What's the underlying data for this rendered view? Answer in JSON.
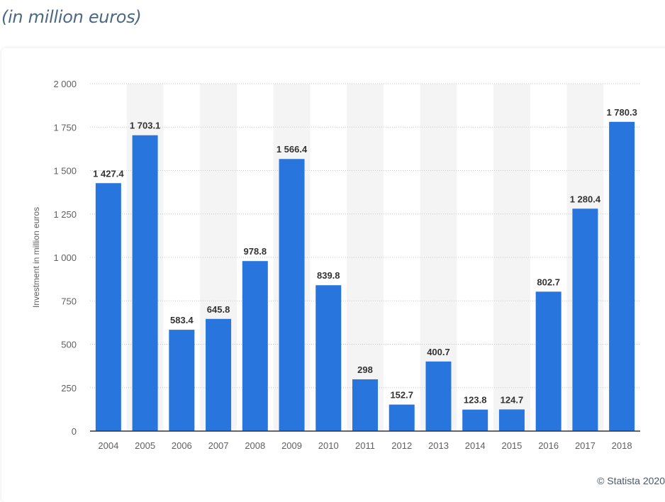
{
  "heading": "(in million euros)",
  "credit": "© Statista 2020",
  "side_tools": [
    "tool-1",
    "tool-2",
    "tool-3",
    "tool-4",
    "tool-5",
    "tool-6"
  ],
  "colors": {
    "bar": "#2876dd",
    "band": "#f4f4f4",
    "grid": "#c8c8c8",
    "axis": "#333333",
    "tick_text": "#606060",
    "label_text": "#333333"
  },
  "chart_data": {
    "type": "bar",
    "title": "",
    "xlabel": "",
    "ylabel": "Investment in million euros",
    "ylim": [
      0,
      2000
    ],
    "yticks": [
      0,
      250,
      500,
      750,
      1000,
      1250,
      1500,
      1750,
      2000
    ],
    "ytick_labels": [
      "0",
      "250",
      "500",
      "750",
      "1 000",
      "1 250",
      "1 500",
      "1 750",
      "2 000"
    ],
    "grid": true,
    "categories": [
      "2004",
      "2005",
      "2006",
      "2007",
      "2008",
      "2009",
      "2010",
      "2011",
      "2012",
      "2013",
      "2014",
      "2015",
      "2016",
      "2017",
      "2018"
    ],
    "values": [
      1427.4,
      1703.1,
      583.4,
      645.8,
      978.8,
      1566.4,
      839.8,
      298,
      152.7,
      400.7,
      123.8,
      124.7,
      802.7,
      1280.4,
      1780.3
    ],
    "value_labels": [
      "1 427.4",
      "1 703.1",
      "583.4",
      "645.8",
      "978.8",
      "1 566.4",
      "839.8",
      "298",
      "152.7",
      "400.7",
      "123.8",
      "124.7",
      "802.7",
      "1 280.4",
      "1 780.3"
    ]
  }
}
